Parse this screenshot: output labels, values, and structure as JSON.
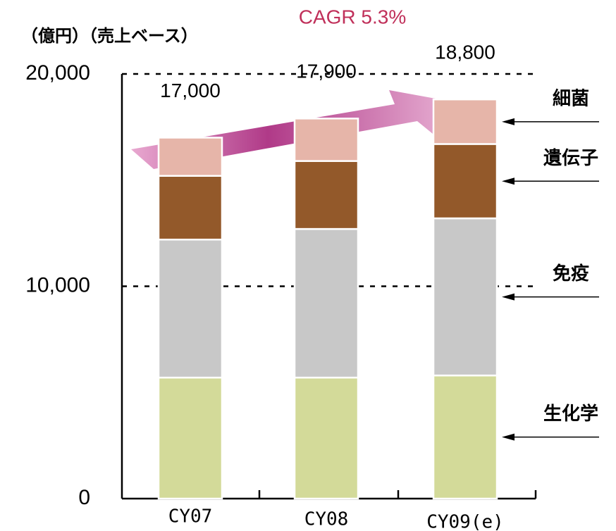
{
  "chart_data": {
    "type": "stacked_bar",
    "y_label": "（億円）（売上ベース）",
    "annotation": "CAGR 5.3%",
    "categories": [
      "CY07",
      "CY08",
      "CY09(e)"
    ],
    "series": [
      {
        "name": "生化学",
        "color": "#d3da99",
        "values": [
          5700,
          5700,
          5800
        ]
      },
      {
        "name": "免疫",
        "color": "#c8c8c8",
        "values": [
          6500,
          7000,
          7400
        ]
      },
      {
        "name": "遺伝子",
        "color": "#93592a",
        "values": [
          3000,
          3200,
          3500
        ]
      },
      {
        "name": "細菌",
        "color": "#e6b5a9",
        "values": [
          1800,
          2000,
          2100
        ]
      }
    ],
    "totals": [
      17000,
      17900,
      18800
    ],
    "total_labels": [
      "17,000",
      "17,900",
      "18,800"
    ],
    "ylim": [
      0,
      20000
    ],
    "yticks": [
      0,
      {
        "value": 10000,
        "label": "10,000"
      },
      {
        "value": 20000,
        "label": "20,000"
      }
    ],
    "grid": true
  }
}
